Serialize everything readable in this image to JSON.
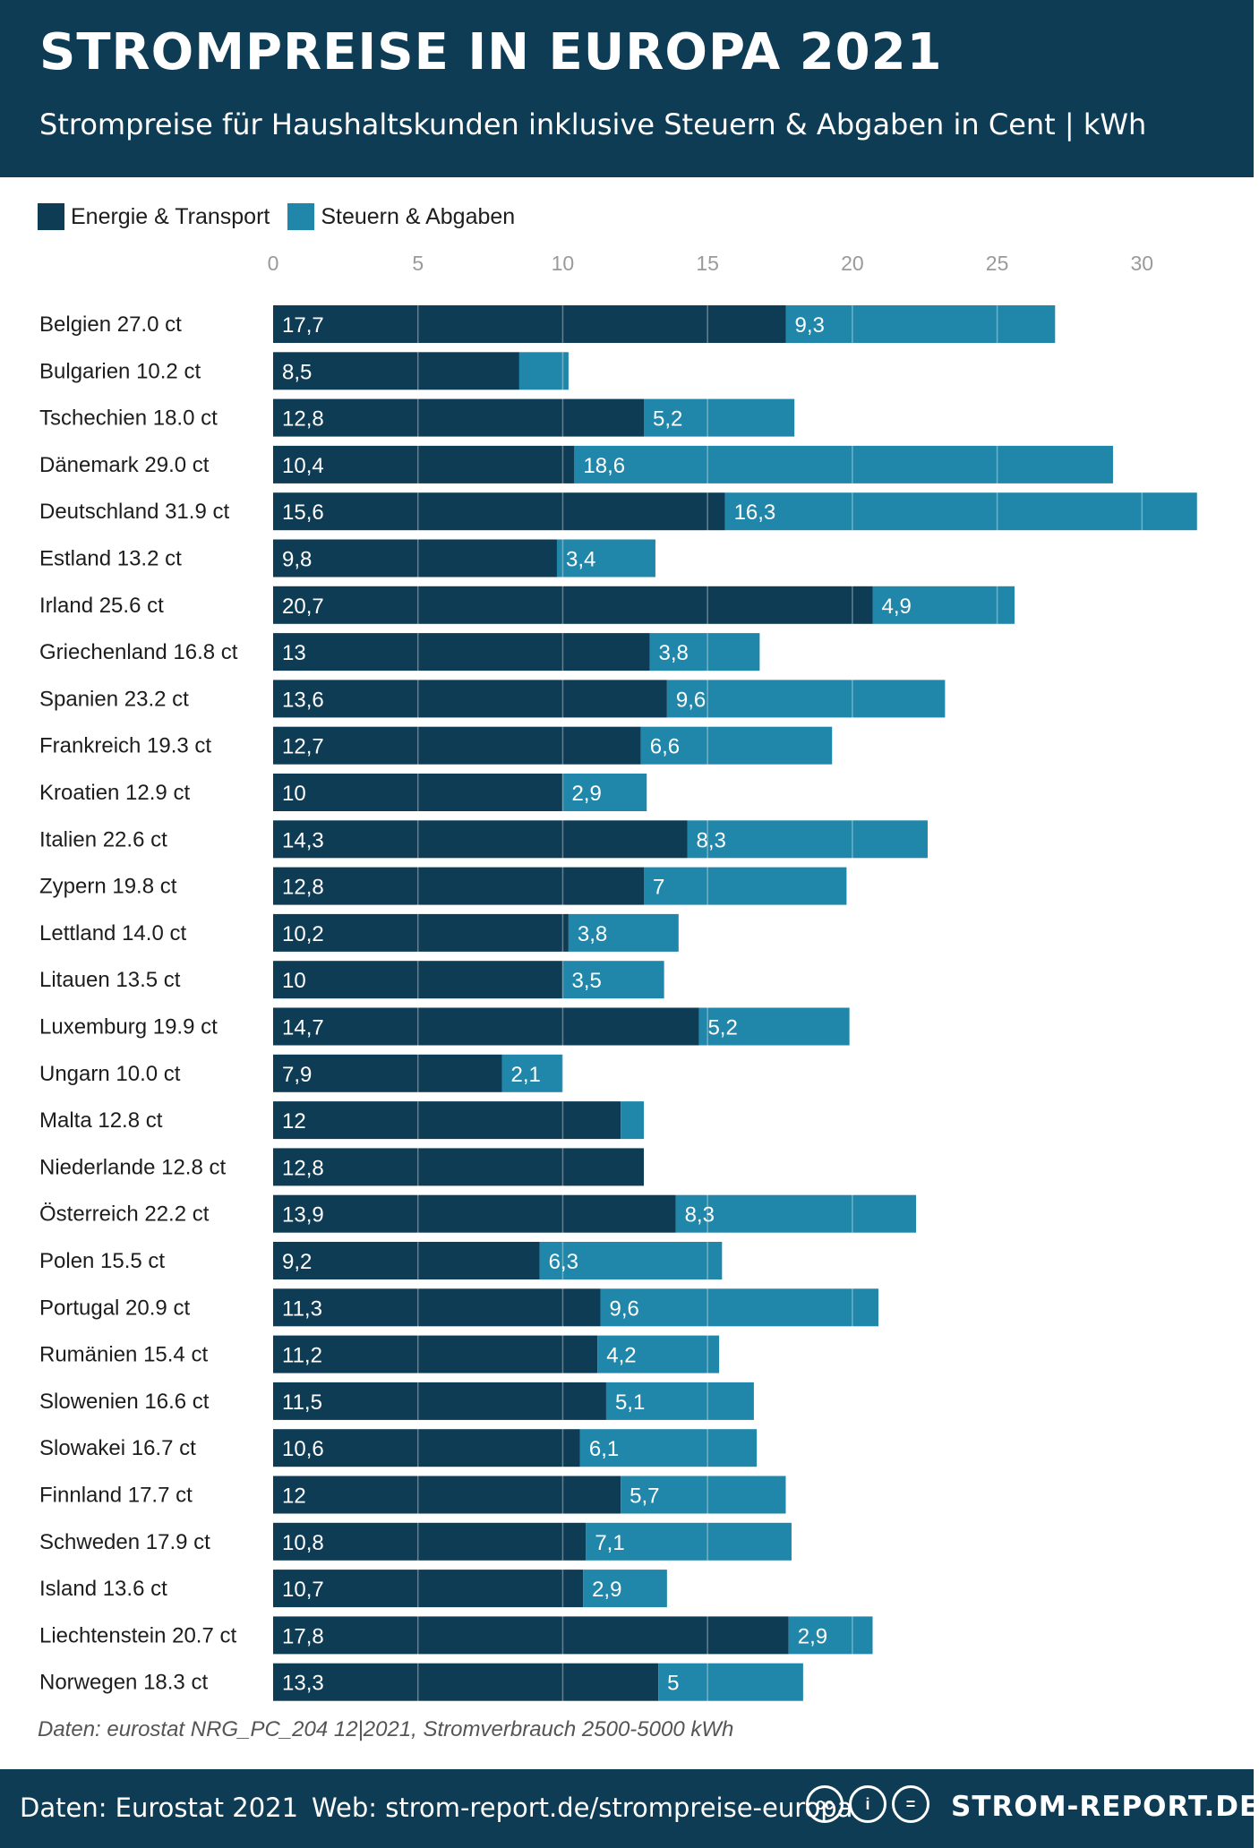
{
  "header": {
    "title": "STROMPREISE IN EUROPA 2021",
    "subtitle": "Strompreise für Haushaltskunden inklusive Steuern & Abgaben in Cent | kWh"
  },
  "colors": {
    "energy": "#0f3c55",
    "tax": "#2187aa",
    "header_bg": "#0f3c55"
  },
  "chart_data": {
    "type": "bar",
    "orientation": "horizontal",
    "stacked": true,
    "xlim": [
      0,
      32
    ],
    "xticks": [
      0,
      5,
      10,
      15,
      20,
      25,
      30
    ],
    "grid": true,
    "legend_position": "top-left",
    "series": [
      {
        "name": "Energie & Transport",
        "color": "#0f3c55",
        "values": [
          17.7,
          8.5,
          12.8,
          10.4,
          15.6,
          9.8,
          20.7,
          13,
          13.6,
          12.7,
          10,
          14.3,
          12.8,
          10.2,
          10,
          14.7,
          7.9,
          12,
          12.8,
          13.9,
          9.2,
          11.3,
          11.2,
          11.5,
          10.6,
          12,
          10.8,
          10.7,
          17.8,
          13.3
        ],
        "labels": [
          "17,7",
          "8,5",
          "12,8",
          "10,4",
          "15,6",
          "9,8",
          "20,7",
          "13",
          "13,6",
          "12,7",
          "10",
          "14,3",
          "12,8",
          "10,2",
          "10",
          "14,7",
          "7,9",
          "12",
          "12,8",
          "13,9",
          "9,2",
          "11,3",
          "11,2",
          "11,5",
          "10,6",
          "12",
          "10,8",
          "10,7",
          "17,8",
          "13,3"
        ]
      },
      {
        "name": "Steuern & Abgaben",
        "color": "#2187aa",
        "values": [
          9.3,
          1.7,
          5.2,
          18.6,
          16.3,
          3.4,
          4.9,
          3.8,
          9.6,
          6.6,
          2.9,
          8.3,
          7,
          3.8,
          3.5,
          5.2,
          2.1,
          0.8,
          0,
          8.3,
          6.3,
          9.6,
          4.2,
          5.1,
          6.1,
          5.7,
          7.1,
          2.9,
          2.9,
          5
        ],
        "labels": [
          "9,3",
          "",
          "5,2",
          "18,6",
          "16,3",
          "3,4",
          "4,9",
          "3,8",
          "9,6",
          "6,6",
          "2,9",
          "8,3",
          "7",
          "3,8",
          "3,5",
          "5,2",
          "2,1",
          "",
          "",
          "8,3",
          "6,3",
          "9,6",
          "4,2",
          "5,1",
          "6,1",
          "5,7",
          "7,1",
          "2,9",
          "2,9",
          "5"
        ]
      }
    ],
    "categories": [
      "Belgien 27.0 ct",
      "Bulgarien 10.2 ct",
      "Tschechien 18.0 ct",
      "Dänemark 29.0 ct",
      "Deutschland 31.9 ct",
      "Estland 13.2 ct",
      "Irland 25.6 ct",
      "Griechenland 16.8 ct",
      "Spanien 23.2 ct",
      "Frankreich 19.3 ct",
      "Kroatien 12.9 ct",
      "Italien 22.6 ct",
      "Zypern 19.8 ct",
      "Lettland 14.0 ct",
      "Litauen 13.5 ct",
      "Luxemburg 19.9 ct",
      "Ungarn 10.0 ct",
      "Malta 12.8 ct",
      "Niederlande 12.8 ct",
      "Österreich 22.2 ct",
      "Polen 15.5 ct",
      "Portugal 20.9 ct",
      "Rumänien 15.4 ct",
      "Slowenien 16.6 ct",
      "Slowakei 16.7 ct",
      "Finnland 17.7 ct",
      "Schweden 17.9 ct",
      "Island 13.6 ct",
      "Liechtenstein 20.7 ct",
      "Norwegen 18.3 ct"
    ]
  },
  "source": "Daten: eurostat NRG_PC_204 12|2021, Stromverbrauch 2500-5000 kWh",
  "footer": {
    "data_label": "Daten: Eurostat 2021",
    "web_label": "Web: strom-report.de/strompreise-europa",
    "license_icons": [
      "cc",
      "i",
      "="
    ],
    "brand": "STROM-REPORT.DE"
  }
}
